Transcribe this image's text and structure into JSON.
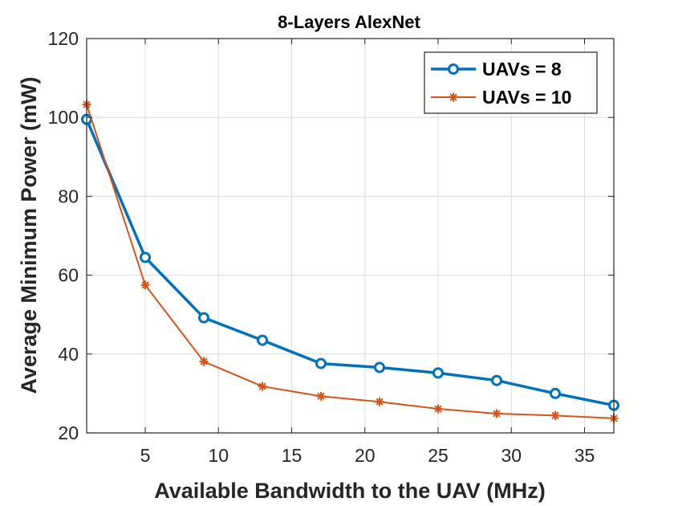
{
  "chart_data": {
    "type": "line",
    "title": "8-Layers AlexNet",
    "xlabel": "Available Bandwidth to the UAV (MHz)",
    "ylabel": "Average Minimum Power (mW)",
    "xlim": [
      1,
      37
    ],
    "ylim": [
      20,
      120
    ],
    "xticks": [
      5,
      10,
      15,
      20,
      25,
      30,
      35
    ],
    "yticks": [
      20,
      40,
      60,
      80,
      100,
      120
    ],
    "grid": true,
    "legend_position": "top-right",
    "x": [
      1,
      5,
      9,
      13,
      17,
      21,
      25,
      29,
      33,
      37
    ],
    "series": [
      {
        "name": "UAVs = 8",
        "color": "#0072BD",
        "marker": "circle",
        "values": [
          99.5,
          64.5,
          49.2,
          43.5,
          37.6,
          36.6,
          35.2,
          33.3,
          30.0,
          27.0
        ]
      },
      {
        "name": "UAVs = 10",
        "color": "#D95319",
        "marker": "asterisk",
        "values": [
          103.3,
          57.5,
          38.1,
          31.8,
          29.3,
          27.9,
          26.1,
          24.9,
          24.4,
          23.7
        ]
      }
    ]
  }
}
